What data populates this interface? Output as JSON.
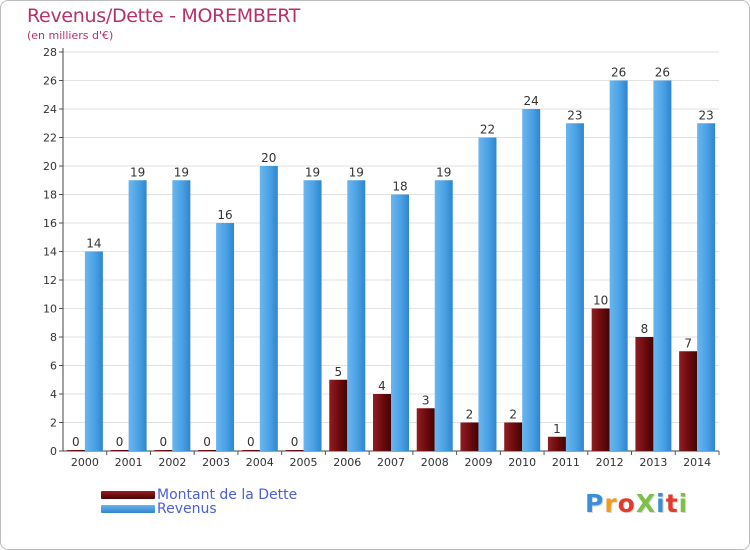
{
  "title": "Revenus/Dette - MOREMBERT",
  "subtitle": "(en milliers d'€)",
  "logo": "ProXiti",
  "colors": {
    "dette": "#6b0a0d",
    "revenus": "#3f98df",
    "title": "#b5316e",
    "legend_text": "#4a5ed8"
  },
  "chart_data": {
    "type": "bar",
    "title": "Revenus/Dette - MOREMBERT",
    "subtitle": "(en milliers d'€)",
    "xlabel": "",
    "ylabel": "",
    "categories": [
      "2000",
      "2001",
      "2002",
      "2003",
      "2004",
      "2005",
      "2006",
      "2007",
      "2008",
      "2009",
      "2010",
      "2011",
      "2012",
      "2013",
      "2014"
    ],
    "series": [
      {
        "name": "Montant de la Dette",
        "values": [
          0,
          0,
          0,
          0,
          0,
          0,
          5,
          4,
          3,
          2,
          2,
          1,
          10,
          8,
          7
        ]
      },
      {
        "name": "Revenus",
        "values": [
          14,
          19,
          19,
          16,
          20,
          19,
          19,
          18,
          19,
          22,
          24,
          23,
          26,
          26,
          23
        ]
      }
    ],
    "ylim": [
      0,
      28
    ],
    "yticks": [
      0,
      2,
      4,
      6,
      8,
      10,
      12,
      14,
      16,
      18,
      20,
      22,
      24,
      26,
      28
    ],
    "grid": true,
    "legend": "bottom-left"
  }
}
